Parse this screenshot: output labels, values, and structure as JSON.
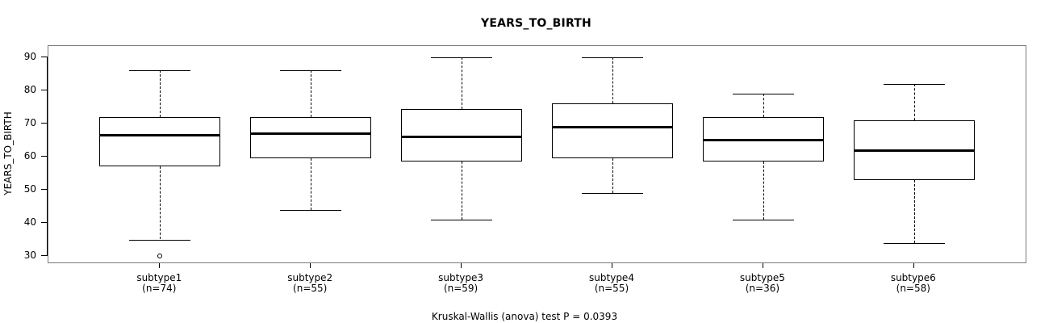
{
  "title": "YEARS_TO_BIRTH",
  "y_axis_title": "YEARS_TO_BIRTH",
  "footer": "Kruskal-Wallis (anova) test P = 0.0393",
  "colors": {
    "line": "#000000",
    "frame": "#7a7a7a",
    "background": "#ffffff"
  },
  "chart_data": {
    "type": "boxplot",
    "title": "YEARS_TO_BIRTH",
    "xlabel": "",
    "ylabel": "YEARS_TO_BIRTH",
    "ylim": [
      28.05,
      93.41
    ],
    "yticks": [
      30,
      40,
      50,
      60,
      70,
      80,
      90
    ],
    "grid": false,
    "footer": "Kruskal-Wallis (anova) test P = 0.0393",
    "groups": [
      {
        "label": "subtype1",
        "n_label": "(n=74)",
        "n": 74,
        "whisker_low": 35,
        "q1": 57,
        "median": 66.5,
        "q3": 72,
        "whisker_high": 86,
        "outliers": [
          30
        ]
      },
      {
        "label": "subtype2",
        "n_label": "(n=55)",
        "n": 55,
        "whisker_low": 44,
        "q1": 59.5,
        "median": 67,
        "q3": 72,
        "whisker_high": 86,
        "outliers": []
      },
      {
        "label": "subtype3",
        "n_label": "(n=59)",
        "n": 59,
        "whisker_low": 41,
        "q1": 58.5,
        "median": 66,
        "q3": 74.5,
        "whisker_high": 90,
        "outliers": []
      },
      {
        "label": "subtype4",
        "n_label": "(n=55)",
        "n": 55,
        "whisker_low": 49,
        "q1": 59.5,
        "median": 69,
        "q3": 76,
        "whisker_high": 90,
        "outliers": []
      },
      {
        "label": "subtype5",
        "n_label": "(n=36)",
        "n": 36,
        "whisker_low": 41,
        "q1": 58.5,
        "median": 65,
        "q3": 72,
        "whisker_high": 79,
        "outliers": []
      },
      {
        "label": "subtype6",
        "n_label": "(n=58)",
        "n": 58,
        "whisker_low": 34,
        "q1": 53,
        "median": 62,
        "q3": 71,
        "whisker_high": 82,
        "outliers": []
      }
    ]
  }
}
